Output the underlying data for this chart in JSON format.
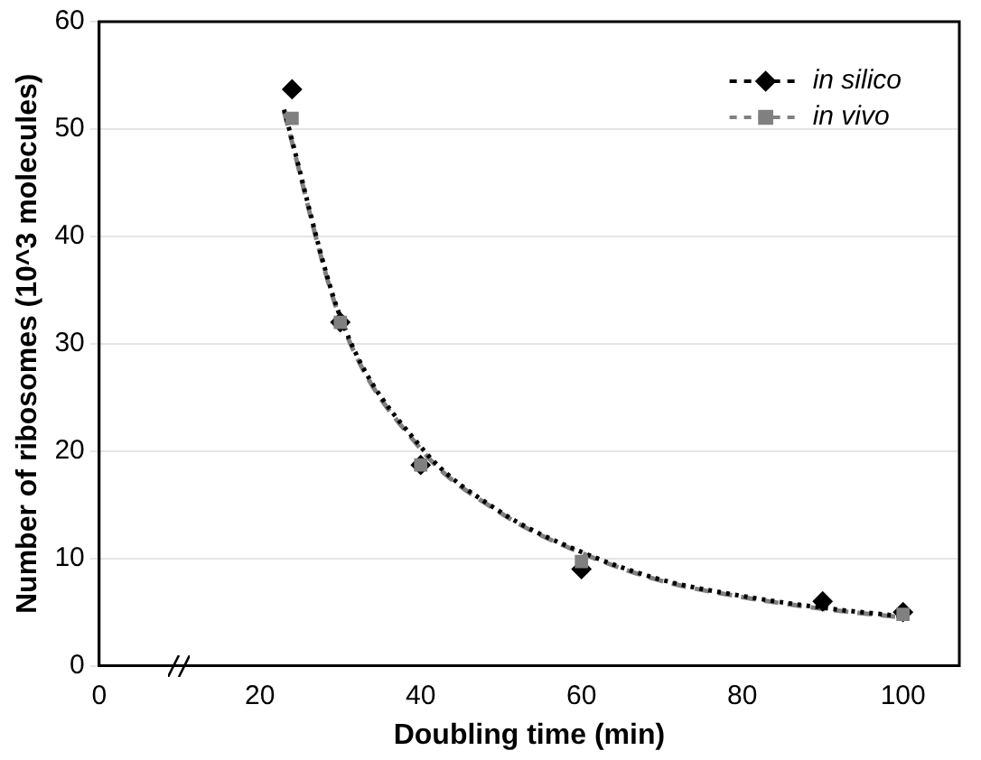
{
  "chart_data": {
    "type": "scatter",
    "xlabel": "Doubling time (min)",
    "ylabel": "Number of ribosomes (10^3 molecules)",
    "xlim": [
      0,
      107
    ],
    "xticks": [
      0,
      20,
      40,
      60,
      80,
      100
    ],
    "ylim": [
      0,
      60
    ],
    "yticks": [
      0,
      10,
      20,
      30,
      40,
      50,
      60
    ],
    "grid": "y",
    "legend": "top right",
    "series": [
      {
        "name": "in silico",
        "marker": "diamond",
        "color": "#000000",
        "x": [
          24,
          30,
          40,
          60,
          90,
          100
        ],
        "values": [
          53.7,
          32,
          18.7,
          9,
          6,
          5
        ]
      },
      {
        "name": "in vivo",
        "marker": "square",
        "color": "#808080",
        "x": [
          24,
          30,
          40,
          60,
          100
        ],
        "values": [
          51,
          32,
          18.7,
          9.7,
          4.8
        ]
      },
      {
        "type": "line",
        "marker": "none",
        "line_style": "dotted",
        "color": "#000000",
        "x": [
          23,
          30,
          40,
          50,
          60,
          70,
          80,
          90,
          100
        ],
        "values": [
          51.8,
          32.5,
          20.4,
          14.3,
          10.6,
          8,
          6.5,
          5.4,
          4.6
        ]
      },
      {
        "type": "line",
        "marker": "none",
        "line_style": "dashed",
        "color": "#808080",
        "x": [
          23,
          30,
          40,
          50,
          60,
          70,
          80,
          90,
          100
        ],
        "values": [
          51.6,
          32.3,
          20.2,
          14.2,
          10.5,
          7.9,
          6.4,
          5.3,
          4.5
        ]
      }
    ]
  }
}
